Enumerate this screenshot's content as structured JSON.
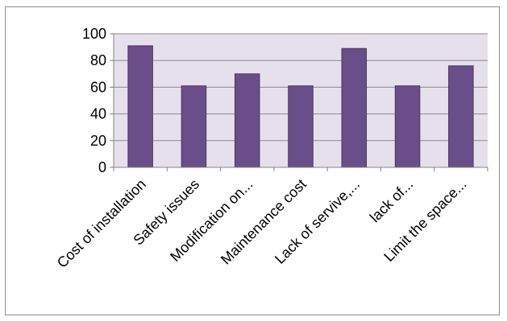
{
  "chart_data": {
    "type": "bar",
    "categories": [
      "Cost of installation",
      "Safety issues",
      "Modification on...",
      "Maintenance cost",
      "Lack of servive,...",
      "lack of...",
      "Limit the space..."
    ],
    "values": [
      91,
      61,
      70,
      61,
      89,
      61,
      76
    ],
    "title": "",
    "xlabel": "",
    "ylabel": "",
    "ylim": [
      0,
      100
    ],
    "yticks": [
      0,
      20,
      40,
      60,
      80,
      100
    ],
    "grid": true,
    "legend": "none",
    "colors": {
      "bar": "#6a4e8a",
      "bar_edge": "#4a3563",
      "plot_bg": "#e6e0ec",
      "grid": "#8a8a8a"
    }
  }
}
